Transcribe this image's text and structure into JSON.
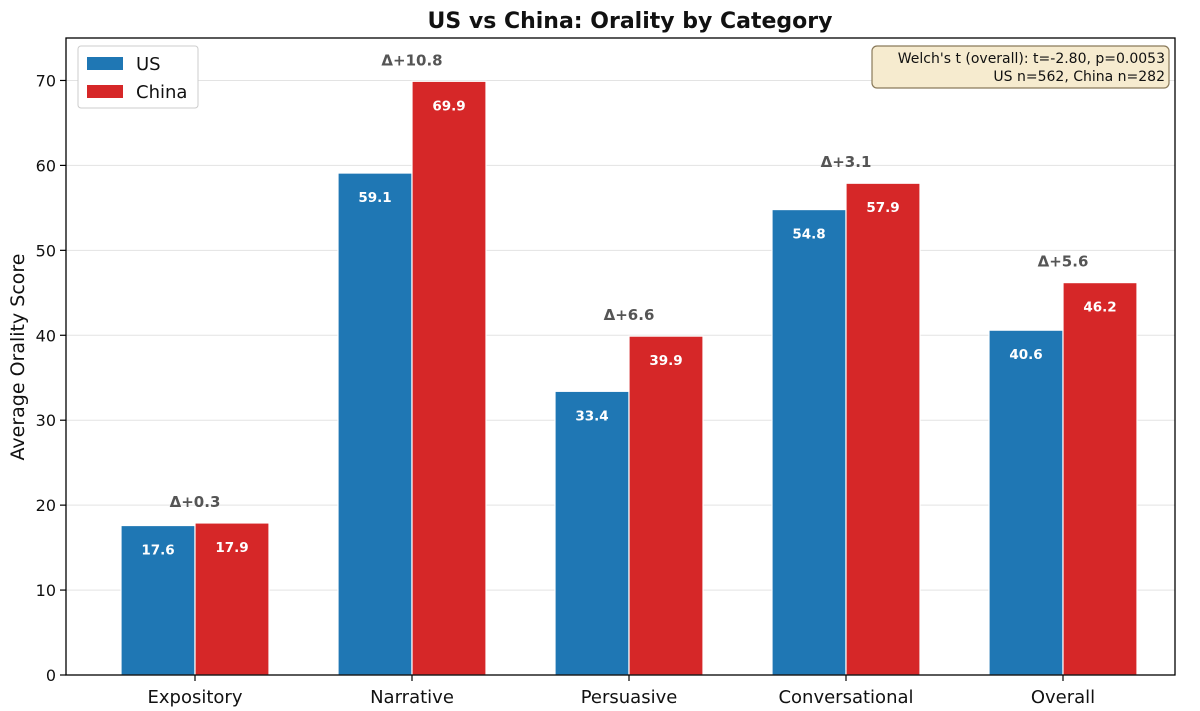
{
  "chart_data": {
    "type": "bar",
    "title": "US vs China: Orality by Category",
    "xlabel": "",
    "ylabel": "Average Orality Score",
    "ylim": [
      0,
      75
    ],
    "yticks": [
      0,
      10,
      20,
      30,
      40,
      50,
      60,
      70
    ],
    "grid": "y",
    "legend_position": "top-left",
    "categories": [
      "Expository",
      "Narrative",
      "Persuasive",
      "Conversational",
      "Overall"
    ],
    "series": [
      {
        "name": "US",
        "color": "#1f77b4",
        "values": [
          17.6,
          59.1,
          33.4,
          54.8,
          40.6
        ]
      },
      {
        "name": "China",
        "color": "#d62728",
        "values": [
          17.9,
          69.9,
          39.9,
          57.9,
          46.2
        ]
      }
    ],
    "value_labels": {
      "US": [
        "17.6",
        "59.1",
        "33.4",
        "54.8",
        "40.6"
      ],
      "China": [
        "17.9",
        "69.9",
        "39.9",
        "57.9",
        "46.2"
      ]
    },
    "deltas": [
      "Δ+0.3",
      "Δ+10.8",
      "Δ+6.6",
      "Δ+3.1",
      "Δ+5.6"
    ],
    "annotation": {
      "line1": "Welch's t (overall): t=-2.80, p=0.0053",
      "line2": "US n=562, China n=282",
      "position": "top-right"
    }
  }
}
